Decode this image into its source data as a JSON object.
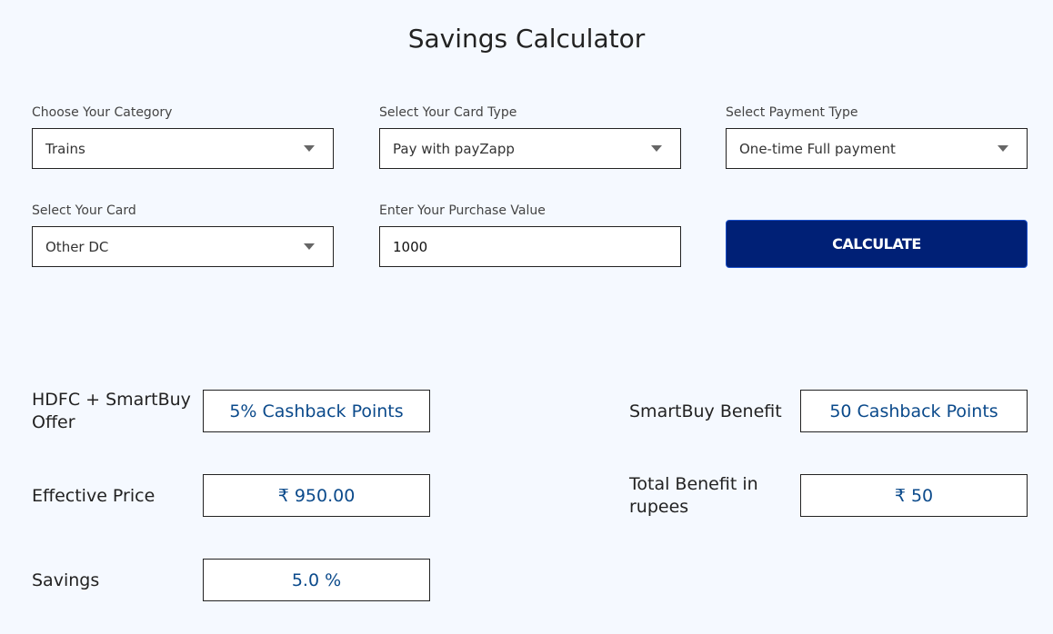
{
  "title": "Savings Calculator",
  "form": {
    "category": {
      "label": "Choose Your Category",
      "value": "Trains"
    },
    "card_type": {
      "label": "Select Your Card Type",
      "value": "Pay with payZapp"
    },
    "payment_type": {
      "label": "Select Payment Type",
      "value": "One-time Full payment"
    },
    "card": {
      "label": "Select Your Card",
      "value": "Other DC"
    },
    "purchase": {
      "label": "Enter Your Purchase Value",
      "value": "1000"
    },
    "calculate_label": "CALCULATE"
  },
  "results": {
    "offer": {
      "label": "HDFC + SmartBuy Offer",
      "value": "5% Cashback Points"
    },
    "effective_price": {
      "label": "Effective Price",
      "value": "₹ 950.00"
    },
    "savings": {
      "label": "Savings",
      "value": "5.0 %"
    },
    "smartbuy_benefit": {
      "label": "SmartBuy Benefit",
      "value": "50 Cashback Points"
    },
    "total_benefit": {
      "label": "Total Benefit in rupees",
      "value": "₹ 50"
    }
  }
}
